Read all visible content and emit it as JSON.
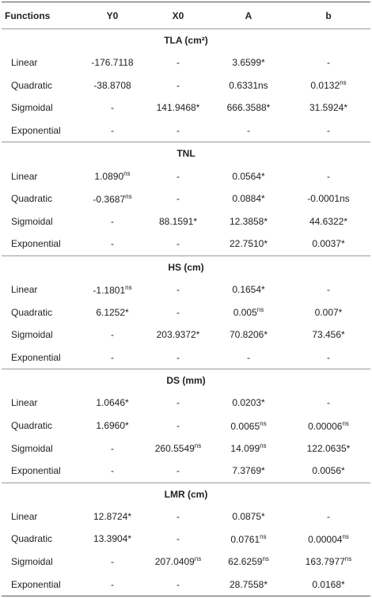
{
  "table": {
    "columns": [
      "Functions",
      "Y0",
      "X0",
      "A",
      "b"
    ],
    "sections": [
      {
        "title": "TLA (cm²)",
        "rows": [
          [
            "Linear",
            "-176.7118",
            "-",
            "3.6599*",
            "-"
          ],
          [
            "Quadratic",
            "-38.8708",
            "-",
            "0.6331ns",
            {
              "v": "0.0132",
              "sup": "ns"
            }
          ],
          [
            "Sigmoidal",
            "-",
            "141.9468*",
            "666.3588*",
            "31.5924*"
          ],
          [
            "Exponential",
            "-",
            "-",
            "-",
            "-"
          ]
        ]
      },
      {
        "title": "TNL",
        "rows": [
          [
            "Linear",
            {
              "v": "1.0890",
              "sup": "ns"
            },
            "-",
            "0.0564*",
            "-"
          ],
          [
            "Quadratic",
            {
              "v": "-0.3687",
              "sup": "ns"
            },
            "-",
            "0.0884*",
            "-0.0001ns"
          ],
          [
            "Sigmoidal",
            "-",
            "88.1591*",
            "12.3858*",
            "44.6322*"
          ],
          [
            "Exponential",
            "-",
            "-",
            "22.7510*",
            "0.0037*"
          ]
        ]
      },
      {
        "title": "HS (cm)",
        "rows": [
          [
            "Linear",
            {
              "v": "-1.1801",
              "sup": "ns"
            },
            "-",
            "0.1654*",
            "-"
          ],
          [
            "Quadratic",
            "6.1252*",
            "-",
            {
              "v": "0.005",
              "sup": "ns"
            },
            "0.007*"
          ],
          [
            "Sigmoidal",
            "-",
            "203.9372*",
            "70.8206*",
            "73.456*"
          ],
          [
            "Exponential",
            "-",
            "-",
            "-",
            "-"
          ]
        ]
      },
      {
        "title": "DS (mm)",
        "rows": [
          [
            "Linear",
            "1.0646*",
            "-",
            "0.0203*",
            "-"
          ],
          [
            "Quadratic",
            "1.6960*",
            "-",
            {
              "v": "0.0065",
              "sup": "ns"
            },
            {
              "v": "0.00006",
              "sup": "ns"
            }
          ],
          [
            "Sigmoidal",
            "-",
            {
              "v": "260.5549",
              "sup": "ns"
            },
            {
              "v": "14.099",
              "sup": "ns"
            },
            "122.0635*"
          ],
          [
            "Exponential",
            "-",
            "-",
            "7.3769*",
            "0.0056*"
          ]
        ]
      },
      {
        "title": "LMR (cm)",
        "rows": [
          [
            "Linear",
            "12.8724*",
            "-",
            "0.0875*",
            "-"
          ],
          [
            "Quadratic",
            "13.3904*",
            "-",
            {
              "v": "0.0761",
              "sup": "ns"
            },
            {
              "v": "0.00004",
              "sup": "ns"
            }
          ],
          [
            "Sigmoidal",
            "-",
            {
              "v": "207.0409",
              "sup": "ns"
            },
            {
              "v": "62.6259",
              "sup": "ns"
            },
            {
              "v": "163.7977",
              "sup": "ns"
            }
          ],
          [
            "Exponential",
            "-",
            "-",
            "28.7558*",
            "0.0168*"
          ]
        ]
      }
    ]
  }
}
